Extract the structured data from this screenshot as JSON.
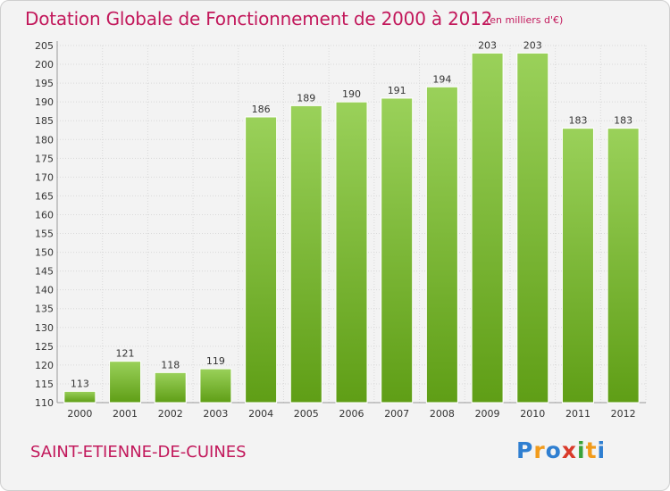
{
  "header": {
    "title": "Dotation Globale de Fonctionnement de 2000 à 2012",
    "unit": "(en milliers d'€)"
  },
  "footer": {
    "commune": "SAINT-ETIENNE-DE-CUINES",
    "brand": "Proxiti"
  },
  "colors": {
    "title": "#c2185b",
    "bar_light": "#9ad15a",
    "bar_dark": "#5f9e16",
    "grid": "#d9d9d9",
    "brand_letters": [
      "#2f7fd1",
      "#f29b1b",
      "#2f7fd1",
      "#d93a2a",
      "#3aa23a",
      "#f29b1b",
      "#2f7fd1"
    ]
  },
  "chart_data": {
    "type": "bar",
    "title": "Dotation Globale de Fonctionnement de 2000 à 2012",
    "subtitle": "(en milliers d'€)",
    "xlabel": "",
    "ylabel": "",
    "categories": [
      "2000",
      "2001",
      "2002",
      "2003",
      "2004",
      "2005",
      "2006",
      "2007",
      "2008",
      "2009",
      "2010",
      "2011",
      "2012"
    ],
    "values": [
      113,
      121,
      118,
      119,
      186,
      189,
      190,
      191,
      194,
      203,
      203,
      183,
      183
    ],
    "ylim": [
      110,
      205
    ],
    "yticks": [
      110,
      115,
      120,
      125,
      130,
      135,
      140,
      145,
      150,
      155,
      160,
      165,
      170,
      175,
      180,
      185,
      190,
      195,
      200,
      205
    ],
    "grid": true,
    "data_labels": true
  }
}
